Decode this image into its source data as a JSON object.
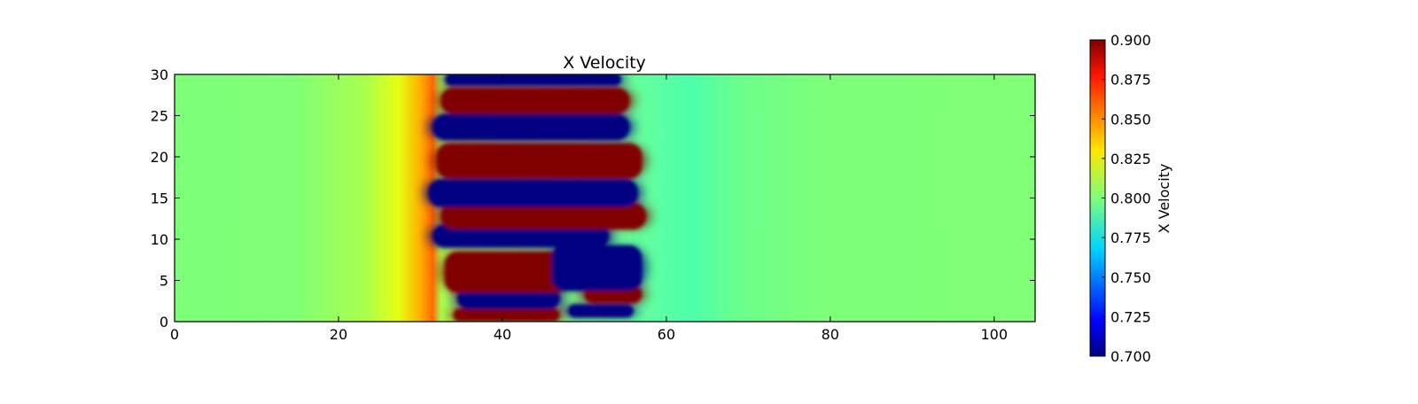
{
  "chart_data": {
    "type": "heatmap",
    "title": "X Velocity",
    "xlabel": "",
    "ylabel": "",
    "xlim": [
      0,
      105
    ],
    "ylim": [
      0,
      30
    ],
    "x_ticks": [
      0,
      20,
      40,
      60,
      80,
      100
    ],
    "y_ticks": [
      0,
      5,
      10,
      15,
      20,
      25,
      30
    ],
    "x_tick_labels": [
      "0",
      "20",
      "40",
      "60",
      "80",
      "100"
    ],
    "y_tick_labels": [
      "0",
      "5",
      "10",
      "15",
      "20",
      "25",
      "30"
    ],
    "colormap": "jet",
    "colorbar": {
      "label": "X Velocity",
      "range": [
        0.7,
        0.9
      ],
      "ticks": [
        0.7,
        0.725,
        0.75,
        0.775,
        0.8,
        0.825,
        0.85,
        0.875,
        0.9
      ],
      "tick_labels": [
        "0.700",
        "0.725",
        "0.750",
        "0.775",
        "0.800",
        "0.825",
        "0.850",
        "0.875",
        "0.900"
      ]
    },
    "background_value": 0.8,
    "vortex_bands": [
      {
        "value": 0.9,
        "x_start": 34,
        "x_end": 47,
        "y_center": 0.8,
        "height": 1.6
      },
      {
        "value": 0.7,
        "x_start": 48,
        "x_end": 56,
        "y_center": 1.3,
        "height": 1.6
      },
      {
        "value": 0.7,
        "x_start": 34.5,
        "x_end": 47,
        "y_center": 2.8,
        "height": 2.6
      },
      {
        "value": 0.9,
        "x_start": 50,
        "x_end": 57,
        "y_center": 3.3,
        "height": 2.2
      },
      {
        "value": 0.9,
        "x_start": 33,
        "x_end": 48,
        "y_center": 6.0,
        "height": 5.0
      },
      {
        "value": 0.7,
        "x_start": 46,
        "x_end": 57,
        "y_center": 6.5,
        "height": 5.5
      },
      {
        "value": 0.7,
        "x_start": 31.5,
        "x_end": 53,
        "y_center": 10.4,
        "height": 2.8
      },
      {
        "value": 0.9,
        "x_start": 32.5,
        "x_end": 57.5,
        "y_center": 12.8,
        "height": 3.2
      },
      {
        "value": 0.7,
        "x_start": 31,
        "x_end": 56.5,
        "y_center": 15.6,
        "height": 3.4
      },
      {
        "value": 0.9,
        "x_start": 32,
        "x_end": 57,
        "y_center": 19.5,
        "height": 4.3
      },
      {
        "value": 0.7,
        "x_start": 31.5,
        "x_end": 55.5,
        "y_center": 23.6,
        "height": 3.2
      },
      {
        "value": 0.9,
        "x_start": 32.5,
        "x_end": 55.5,
        "y_center": 26.8,
        "height": 3.2
      },
      {
        "value": 0.7,
        "x_start": 33,
        "x_end": 54.5,
        "y_center": 29.4,
        "height": 1.6
      }
    ]
  }
}
